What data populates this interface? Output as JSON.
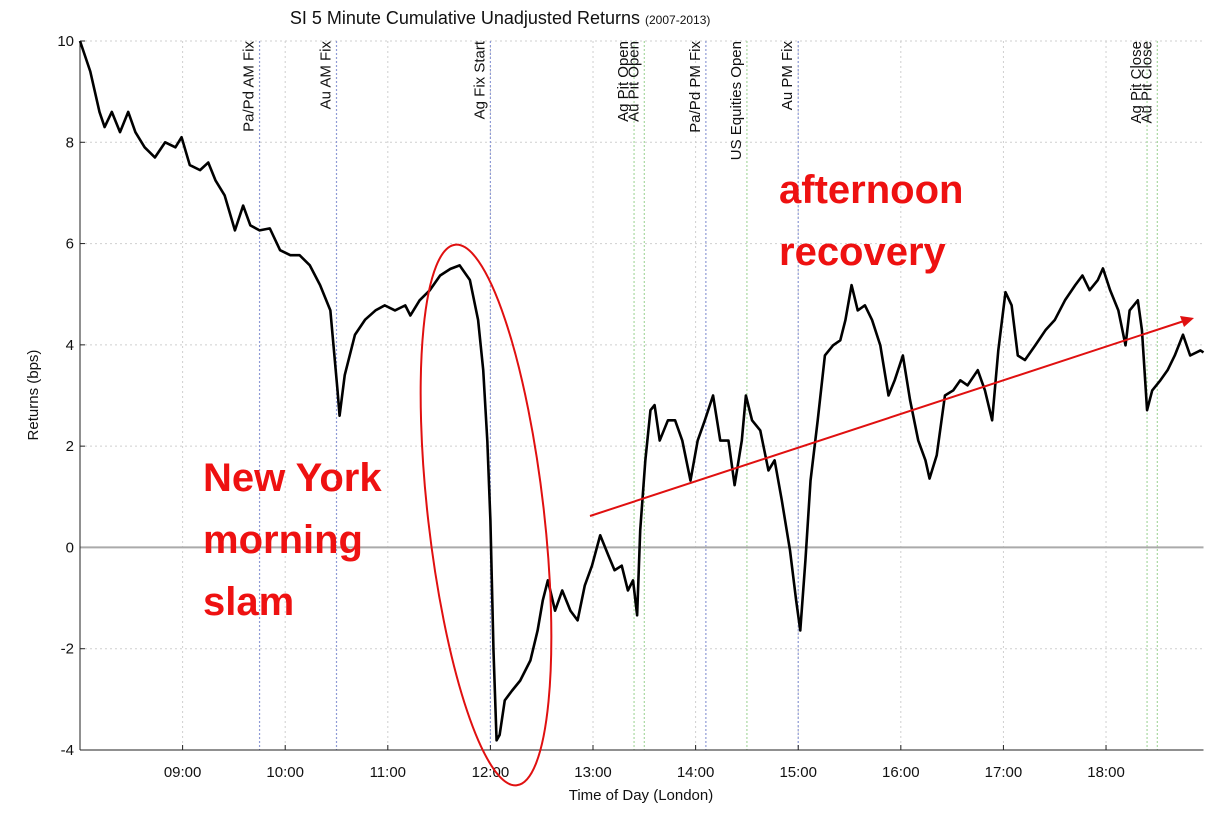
{
  "chart_data": {
    "type": "line",
    "title": "SI 5 Minute Cumulative Unadjusted Returns",
    "title_note": "(2007-2013)",
    "x_label": "Time of Day (London)",
    "y_label": "Returns (bps)",
    "color": "#000000",
    "zero_line_color": "#aaaaaa",
    "grid": true,
    "xlim": [
      8,
      18.95
    ],
    "ylim": [
      -4,
      10
    ],
    "xticks": [
      {
        "value": 9,
        "label": "09:00"
      },
      {
        "value": 10,
        "label": "10:00"
      },
      {
        "value": 11,
        "label": "11:00"
      },
      {
        "value": 12,
        "label": "12:00"
      },
      {
        "value": 13,
        "label": "13:00"
      },
      {
        "value": 14,
        "label": "14:00"
      },
      {
        "value": 15,
        "label": "15:00"
      },
      {
        "value": 16,
        "label": "16:00"
      },
      {
        "value": 17,
        "label": "17:00"
      },
      {
        "value": 18,
        "label": "18:00"
      }
    ],
    "yticks": [
      -4,
      -2,
      0,
      2,
      4,
      6,
      8,
      10
    ],
    "events": [
      {
        "label": "Pa/Pd AM Fix",
        "x": 9.75,
        "color": "#8f9bd6"
      },
      {
        "label": "Au AM Fix",
        "x": 10.5,
        "color": "#8f9bd6"
      },
      {
        "label": "Ag Fix Start",
        "x": 12,
        "color": "#8f9bd6"
      },
      {
        "label": "Ag Pit Open",
        "x": 13.4,
        "color": "#a8d8a0"
      },
      {
        "label": "Au Pit Open",
        "x": 13.5,
        "color": "#a8d8a0"
      },
      {
        "label": "Pa/Pd PM Fix",
        "x": 14.1,
        "color": "#8f9bd6"
      },
      {
        "label": "US Equities Open",
        "x": 14.5,
        "color": "#a8d8a0"
      },
      {
        "label": "Au PM Fix",
        "x": 15,
        "color": "#8f9bd6"
      },
      {
        "label": "Ag Pit Close",
        "x": 18.4,
        "color": "#a8d8a0"
      },
      {
        "label": "Au Pit Close",
        "x": 18.5,
        "color": "#a8d8a0"
      }
    ],
    "annotations": [
      {
        "lines": [
          "afternoon",
          "recovery"
        ]
      },
      {
        "lines": [
          "New York",
          "morning",
          "slam"
        ]
      }
    ],
    "x": [
      8.0,
      8.1,
      8.19,
      8.24,
      8.31,
      8.39,
      8.47,
      8.54,
      8.63,
      8.73,
      8.83,
      8.93,
      8.99,
      9.07,
      9.17,
      9.25,
      9.32,
      9.41,
      9.51,
      9.59,
      9.66,
      9.75,
      9.85,
      9.95,
      10.05,
      10.14,
      10.24,
      10.34,
      10.44,
      10.51,
      10.53,
      10.58,
      10.68,
      10.78,
      10.88,
      10.97,
      11.07,
      11.17,
      11.22,
      11.31,
      11.41,
      11.51,
      11.61,
      11.7,
      11.8,
      11.88,
      11.93,
      11.97,
      12.0,
      12.03,
      12.06,
      12.09,
      12.14,
      12.21,
      12.29,
      12.39,
      12.46,
      12.51,
      12.56,
      12.63,
      12.7,
      12.78,
      12.85,
      12.92,
      12.99,
      13.07,
      13.15,
      13.21,
      13.28,
      13.34,
      13.39,
      13.43,
      13.46,
      13.51,
      13.56,
      13.6,
      13.65,
      13.73,
      13.8,
      13.87,
      13.95,
      14.02,
      14.09,
      14.17,
      14.24,
      14.32,
      14.38,
      14.45,
      14.49,
      14.55,
      14.63,
      14.71,
      14.77,
      14.84,
      14.92,
      14.98,
      15.02,
      15.07,
      15.12,
      15.19,
      15.26,
      15.34,
      15.41,
      15.46,
      15.52,
      15.58,
      15.65,
      15.72,
      15.8,
      15.88,
      15.94,
      16.02,
      16.09,
      16.17,
      16.24,
      16.28,
      16.35,
      16.43,
      16.51,
      16.58,
      16.65,
      16.75,
      16.82,
      16.89,
      16.95,
      17.02,
      17.08,
      17.14,
      17.21,
      17.31,
      17.41,
      17.5,
      17.6,
      17.7,
      17.77,
      17.84,
      17.92,
      17.97,
      18.04,
      18.12,
      18.19,
      18.23,
      18.31,
      18.35,
      18.4,
      18.45,
      18.53,
      18.6,
      18.67,
      18.75,
      18.82,
      18.92,
      18.95
    ],
    "values": [
      10.0,
      9.4,
      8.6,
      8.3,
      8.6,
      8.2,
      8.6,
      8.2,
      7.9,
      7.7,
      8.0,
      7.9,
      8.1,
      7.55,
      7.45,
      7.6,
      7.25,
      6.95,
      6.26,
      6.75,
      6.36,
      6.26,
      6.3,
      5.87,
      5.77,
      5.77,
      5.57,
      5.18,
      4.68,
      3.1,
      2.6,
      3.4,
      4.2,
      4.5,
      4.68,
      4.78,
      4.68,
      4.78,
      4.58,
      4.88,
      5.08,
      5.37,
      5.5,
      5.57,
      5.28,
      4.49,
      3.5,
      2.1,
      0.53,
      -2.04,
      -3.81,
      -3.7,
      -3.02,
      -2.83,
      -2.63,
      -2.23,
      -1.64,
      -1.05,
      -0.65,
      -1.25,
      -0.85,
      -1.25,
      -1.44,
      -0.75,
      -0.36,
      0.24,
      -0.16,
      -0.45,
      -0.36,
      -0.85,
      -0.65,
      -1.34,
      0.34,
      1.72,
      2.71,
      2.81,
      2.11,
      2.51,
      2.51,
      2.11,
      1.32,
      2.11,
      2.51,
      3.0,
      2.11,
      2.11,
      1.23,
      2.11,
      3.0,
      2.51,
      2.31,
      1.52,
      1.72,
      0.93,
      -0.06,
      -1.05,
      -1.64,
      -0.26,
      1.32,
      2.51,
      3.79,
      3.99,
      4.09,
      4.49,
      5.18,
      4.68,
      4.78,
      4.49,
      3.99,
      3.0,
      3.3,
      3.79,
      2.91,
      2.11,
      1.72,
      1.36,
      1.82,
      3.0,
      3.1,
      3.3,
      3.2,
      3.5,
      3.1,
      2.51,
      3.89,
      5.04,
      4.78,
      3.79,
      3.7,
      3.99,
      4.29,
      4.49,
      4.88,
      5.18,
      5.37,
      5.08,
      5.28,
      5.51,
      5.08,
      4.68,
      3.99,
      4.68,
      4.88,
      4.29,
      2.71,
      3.1,
      3.3,
      3.5,
      3.79,
      4.2,
      3.79,
      3.89,
      3.85
    ]
  }
}
